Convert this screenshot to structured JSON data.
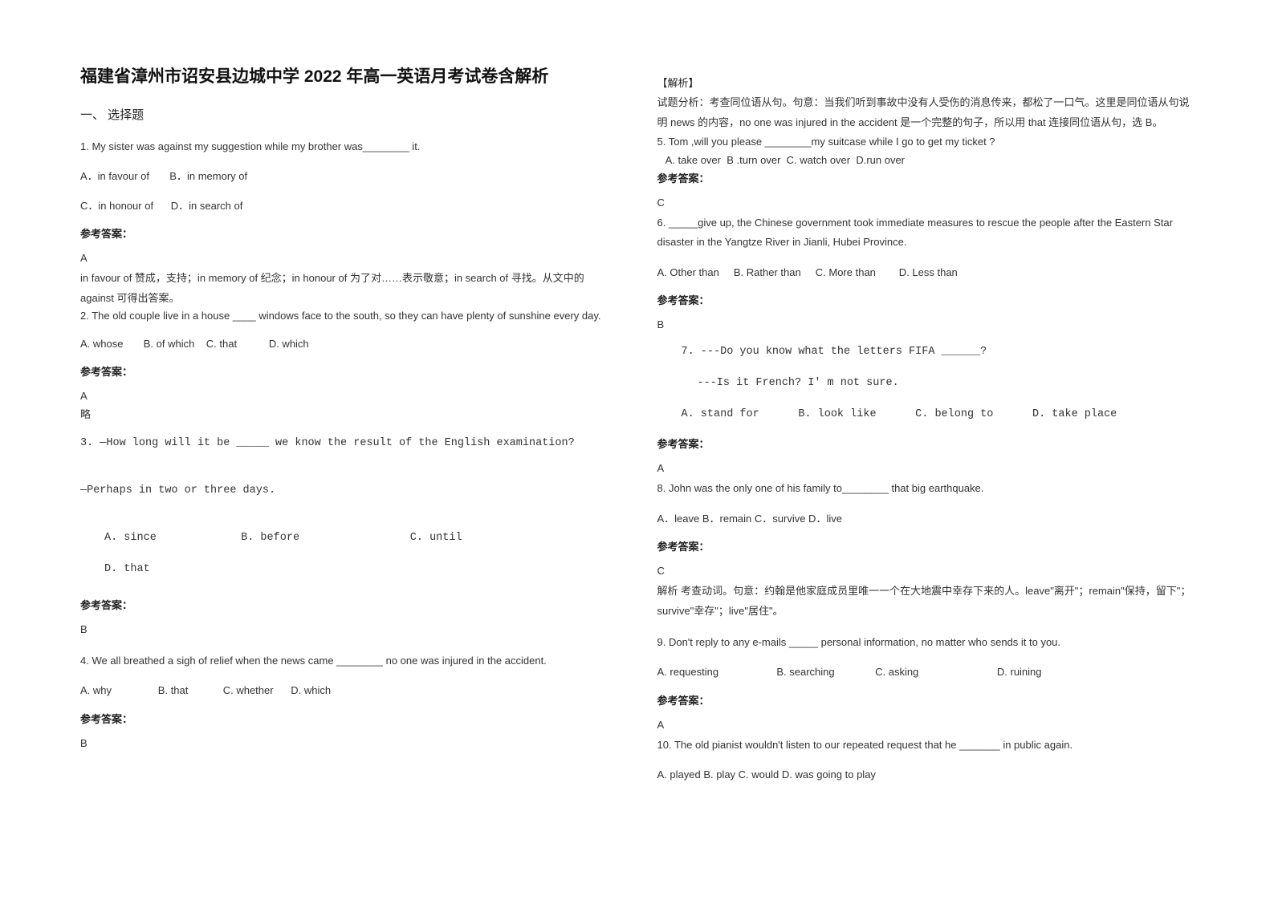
{
  "title": "福建省漳州市诏安县边城中学 2022 年高一英语月考试卷含解析",
  "sectionHeading": "一、 选择题",
  "left": {
    "q1": {
      "stem": "1. My sister was against my suggestion while my brother was________ it.",
      "optA": "A．in favour of",
      "optB": "B．in memory of",
      "optC": "C．in honour of",
      "optD": "D．in search of",
      "ansLabel": "参考答案：",
      "ansLetter": "A",
      "explain": "in favour of 赞成，支持；in memory of 纪念；in honour of 为了对……表示敬意；in search of 寻找。从文中的 against 可得出答案。"
    },
    "q2": {
      "stem1": "2. The old couple live in a house ____ windows face to the south, so they can have plenty of sunshine every day.",
      "opts": "A. whose       B. of which    C. that           D. which",
      "ansLabel": "参考答案：",
      "ansLetter": "A",
      "略": "略"
    },
    "q3": {
      "stem": "3. —How long will it be _____ we know the result of the English examination?",
      "stem2": "—Perhaps in two or three days.",
      "optsLine1": "A. since             B. before                 C. until",
      "optsLine2": "D. that",
      "ansLabel": "参考答案：",
      "ansLetter": "B"
    },
    "q4": {
      "stem": "4. We all breathed a sigh of relief when the news came ________ no one was injured in the accident.",
      "opts": "A. why                B. that            C. whether      D. which",
      "ansLabel": "参考答案：",
      "ansLetter": "B"
    }
  },
  "right": {
    "analysisLabel": "【解析】",
    "analysisText1": "试题分析：考查同位语从句。句意：当我们听到事故中没有人受伤的消息传来，都松了一口气。这里是同位语从句说明 news 的内容，no one was injured in the accident 是一个完整的句子，所以用 that 连接同位语从句，选 B。",
    "q5": {
      "stem": "5. Tom ,will you please ________my suitcase while I go to get my ticket ?",
      "opts": "   A. take over  B .turn over  C. watch over  D.run over",
      "ansLabel": "参考答案：",
      "ansLetter": "C"
    },
    "q6": {
      "stem": "6. _____give up, the Chinese government took immediate measures to rescue the people after the Eastern Star disaster in the Yangtze River in Jianli, Hubei Province.",
      "opts": "A. Other than     B. Rather than     C. More than        D. Less than",
      "ansLabel": "参考答案：",
      "ansLetter": "B"
    },
    "q7": {
      "stem": "7. ---Do you know what the letters FIFA ______?",
      "stem2": "---Is it French? I' m not sure.",
      "opts": "A. stand for      B. look like      C. belong to      D. take place",
      "ansLabel": "参考答案：",
      "ansLetter": "A"
    },
    "q8": {
      "stem": "8. John was the only one of his family to________ that big earthquake.",
      "opts": "A．leave  B．remain  C．survive    D．live",
      "ansLabel": "参考答案：",
      "ansLetter": "C",
      "explain": "解析   考查动词。句意：约翰是他家庭成员里唯一一个在大地震中幸存下来的人。leave\"离开\"；remain\"保持，留下\"；survive\"幸存\"；live\"居住\"。"
    },
    "q9": {
      "stem": "9. Don't reply to any e-mails _____ personal information, no matter who sends it to you.",
      "opts": "A. requesting                    B. searching              C. asking                           D. ruining",
      "ansLabel": "参考答案：",
      "ansLetter": "A"
    },
    "q10": {
      "stem": "10. The old pianist wouldn't listen to our repeated request that he _______ in public again.",
      "opts": "A. played    B. play    C. would    D. was going to play"
    }
  }
}
